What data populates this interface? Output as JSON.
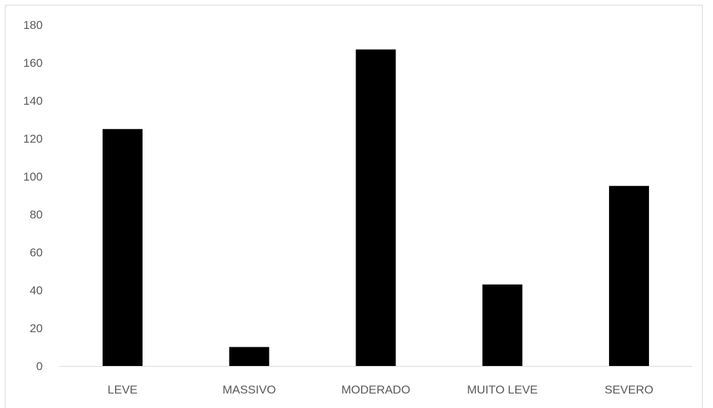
{
  "chart_data": {
    "type": "bar",
    "categories": [
      "LEVE",
      "MASSIVO",
      "MODERADO",
      "MUITO LEVE",
      "SEVERO"
    ],
    "values": [
      125,
      10,
      167,
      43,
      95
    ],
    "title": "",
    "xlabel": "",
    "ylabel": "",
    "ylim": [
      0,
      180
    ],
    "yticks": [
      0,
      20,
      40,
      60,
      80,
      100,
      120,
      140,
      160,
      180
    ],
    "grid": false,
    "legend": "none",
    "bar_color": "#000000",
    "axis_color": "#d9d9d9",
    "tick_label_color": "#595959"
  }
}
